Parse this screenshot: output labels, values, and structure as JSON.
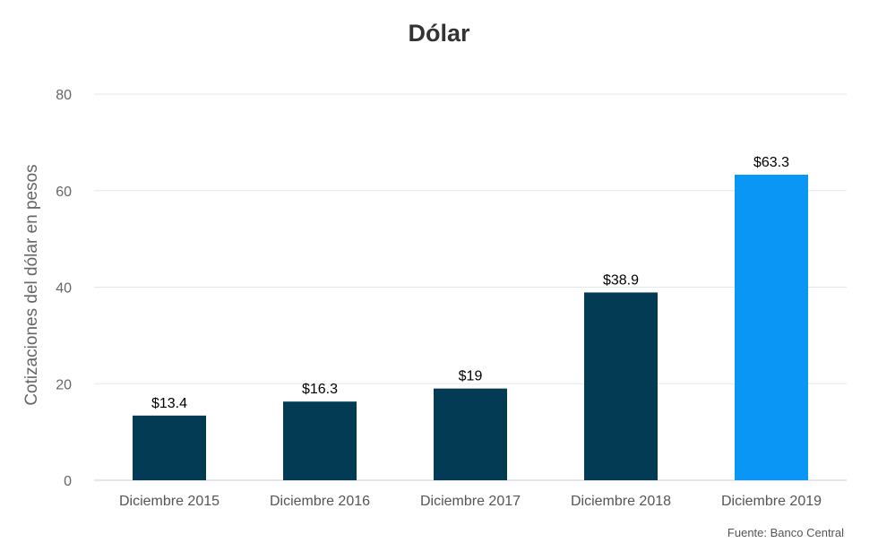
{
  "chart_data": {
    "type": "bar",
    "title": "Dólar",
    "xlabel": "",
    "ylabel": "Cotizaciones del dólar en pesos",
    "ylim": [
      0,
      80
    ],
    "yticks": [
      0,
      20,
      40,
      60,
      80
    ],
    "grid": true,
    "categories": [
      "Diciembre 2015",
      "Diciembre 2016",
      "Diciembre 2017",
      "Diciembre 2018",
      "Diciembre 2019"
    ],
    "values": [
      13.4,
      16.3,
      19,
      38.9,
      63.3
    ],
    "data_labels": [
      "$13.4",
      "$16.3",
      "$19",
      "$38.9",
      "$63.3"
    ],
    "colors": [
      "#033a54",
      "#033a54",
      "#033a54",
      "#033a54",
      "#0a96f5"
    ],
    "source": "Fuente: Banco Central"
  }
}
